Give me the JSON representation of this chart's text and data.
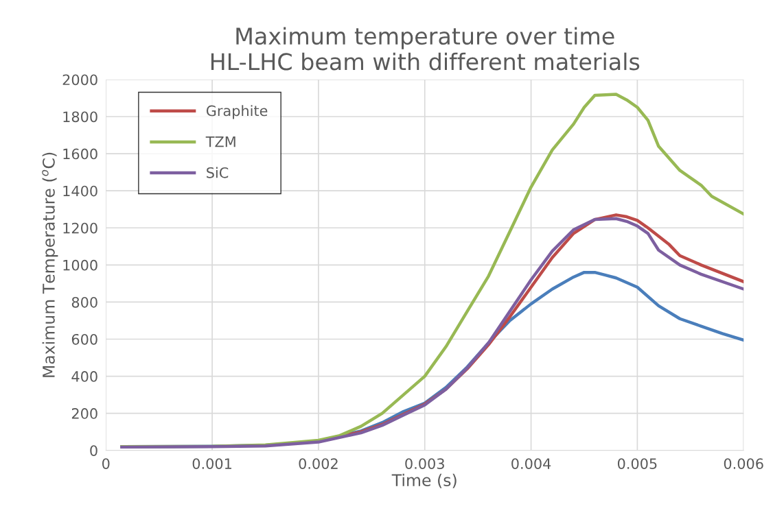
{
  "chart_data": {
    "type": "line",
    "title": "Maximum temperature over time\nHL-LHC beam with different materials",
    "xlabel": "Time (s)",
    "ylabel": "Maximum Temperature ($^{o}$C)",
    "xlim": [
      0,
      0.006
    ],
    "xticks": [
      0,
      0.001,
      0.002,
      0.003,
      0.004,
      0.005,
      0.006
    ],
    "ylim": [
      0,
      2000
    ],
    "yticks": [
      0,
      200,
      400,
      600,
      800,
      1000,
      1200,
      1400,
      1600,
      1800,
      2000
    ],
    "grid": true,
    "legend": "top left",
    "series": [
      {
        "color": "#4a7ebb",
        "x": [
          0.00015,
          0.001,
          0.0015,
          0.002,
          0.0024,
          0.0026,
          0.0028,
          0.003,
          0.0032,
          0.0034,
          0.0036,
          0.0038,
          0.004,
          0.0042,
          0.0044,
          0.0045,
          0.0046,
          0.0047,
          0.0048,
          0.005,
          0.0052,
          0.0054,
          0.0056,
          0.0058,
          0.006
        ],
        "values": [
          20,
          22,
          28,
          50,
          105,
          150,
          210,
          255,
          340,
          450,
          580,
          700,
          790,
          870,
          935,
          960,
          960,
          945,
          930,
          880,
          780,
          710,
          670,
          630,
          595
        ]
      },
      {
        "name": "Graphite",
        "color": "#be4b48",
        "x": [
          0.002,
          0.0024,
          0.0026,
          0.0028,
          0.003,
          0.0032,
          0.0034,
          0.0036,
          0.0038,
          0.004,
          0.0042,
          0.0044,
          0.0046,
          0.0048,
          0.0049,
          0.005,
          0.0051,
          0.0053,
          0.0054,
          0.0056,
          0.006
        ],
        "values": [
          50,
          100,
          140,
          195,
          250,
          330,
          440,
          570,
          720,
          880,
          1040,
          1170,
          1245,
          1270,
          1260,
          1240,
          1200,
          1110,
          1050,
          1000,
          910
        ]
      },
      {
        "name": "TZM",
        "color": "#98b954",
        "x": [
          0.00015,
          0.001,
          0.0015,
          0.002,
          0.0022,
          0.0024,
          0.0026,
          0.0028,
          0.003,
          0.0032,
          0.0034,
          0.0036,
          0.0038,
          0.0039,
          0.004,
          0.0042,
          0.0044,
          0.0045,
          0.0046,
          0.0048,
          0.0049,
          0.005,
          0.0051,
          0.0052,
          0.0054,
          0.0056,
          0.0057,
          0.006
        ],
        "values": [
          20,
          22,
          30,
          55,
          80,
          130,
          200,
          300,
          400,
          560,
          750,
          940,
          1180,
          1300,
          1420,
          1620,
          1760,
          1850,
          1915,
          1920,
          1890,
          1850,
          1780,
          1640,
          1510,
          1430,
          1370,
          1275
        ]
      },
      {
        "name": "SiC",
        "color": "#7d5fa0",
        "x": [
          0.00015,
          0.001,
          0.0015,
          0.002,
          0.0024,
          0.0026,
          0.0028,
          0.003,
          0.0032,
          0.0034,
          0.0036,
          0.0038,
          0.004,
          0.0042,
          0.0044,
          0.0046,
          0.0048,
          0.0049,
          0.005,
          0.0051,
          0.0052,
          0.0054,
          0.0056,
          0.006
        ],
        "values": [
          18,
          20,
          24,
          45,
          95,
          135,
          190,
          245,
          330,
          445,
          580,
          750,
          920,
          1075,
          1190,
          1245,
          1250,
          1235,
          1210,
          1170,
          1080,
          1000,
          950,
          870
        ]
      }
    ]
  }
}
